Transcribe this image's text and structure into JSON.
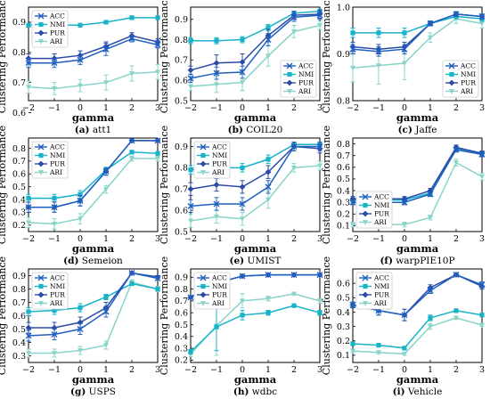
{
  "colors": {
    "ACC": "#1f5fbf",
    "NMI": "#17b3c9",
    "PUR": "#2a4aa8",
    "ARI": "#88d4c8"
  },
  "common": {
    "xlabel": "gamma",
    "ylabel": "Clustering Performance"
  },
  "chart_data": [
    {
      "type": "line",
      "panel_letter": "(a)",
      "panel_name": "att1",
      "x": [
        -2,
        -1,
        0,
        1,
        2,
        3
      ],
      "xlim": [
        -2,
        3
      ],
      "yticks": [
        "0.6",
        "0.7",
        "0.8",
        "0.9"
      ],
      "ylim": [
        0.64,
        0.95
      ],
      "legend": "top-left",
      "legend_entries": [
        "ACC",
        "NMI",
        "PUR",
        "ARI"
      ],
      "series": [
        {
          "name": "ACC",
          "values": [
            0.765,
            0.765,
            0.775,
            0.81,
            0.845,
            0.825
          ],
          "err": [
            0.015,
            0.015,
            0.015,
            0.02,
            0.01,
            0.01
          ]
        },
        {
          "name": "NMI",
          "values": [
            0.89,
            0.89,
            0.89,
            0.9,
            0.915,
            0.915
          ],
          "err": [
            0.005,
            0.005,
            0.005,
            0.005,
            0.005,
            0.005
          ]
        },
        {
          "name": "PUR",
          "values": [
            0.78,
            0.78,
            0.79,
            0.82,
            0.855,
            0.835
          ],
          "err": [
            0.015,
            0.015,
            0.015,
            0.015,
            0.01,
            0.01
          ]
        },
        {
          "name": "ARI",
          "values": [
            0.685,
            0.68,
            0.69,
            0.7,
            0.73,
            0.735
          ],
          "err": [
            0.02,
            0.02,
            0.02,
            0.025,
            0.025,
            0.025
          ]
        }
      ]
    },
    {
      "type": "line",
      "panel_letter": "(b)",
      "panel_name": "COIL20",
      "x": [
        -2,
        -1,
        0,
        1,
        2,
        3
      ],
      "xlim": [
        -2,
        3
      ],
      "yticks": [
        "0.5",
        "0.6",
        "0.7",
        "0.8",
        "0.9"
      ],
      "ylim": [
        0.5,
        0.96
      ],
      "legend": "bottom-right",
      "legend_entries": [
        "ACC",
        "NMI",
        "PUR",
        "ARI"
      ],
      "series": [
        {
          "name": "ACC",
          "values": [
            0.61,
            0.635,
            0.64,
            0.8,
            0.91,
            0.92
          ],
          "err": [
            0.02,
            0.03,
            0.03,
            0.03,
            0.02,
            0.02
          ]
        },
        {
          "name": "NMI",
          "values": [
            0.795,
            0.795,
            0.8,
            0.86,
            0.93,
            0.94
          ],
          "err": [
            0.015,
            0.015,
            0.015,
            0.015,
            0.01,
            0.01
          ]
        },
        {
          "name": "PUR",
          "values": [
            0.65,
            0.685,
            0.69,
            0.82,
            0.92,
            0.925
          ],
          "err": [
            0.02,
            0.04,
            0.04,
            0.03,
            0.02,
            0.02
          ]
        },
        {
          "name": "ARI",
          "values": [
            0.57,
            0.58,
            0.59,
            0.72,
            0.84,
            0.87
          ],
          "err": [
            0.02,
            0.04,
            0.04,
            0.05,
            0.03,
            0.02
          ]
        }
      ]
    },
    {
      "type": "line",
      "panel_letter": "(c)",
      "panel_name": "Jaffe",
      "x": [
        -2,
        -1,
        0,
        1,
        2,
        3
      ],
      "xlim": [
        -2,
        3
      ],
      "yticks": [
        "0.8",
        "0.9",
        "1.0"
      ],
      "ylim": [
        0.8,
        1.0
      ],
      "legend": "bottom-right",
      "legend_entries": [
        "ACC",
        "NMI",
        "PUR",
        "ARI"
      ],
      "series": [
        {
          "name": "ACC",
          "values": [
            0.91,
            0.905,
            0.91,
            0.965,
            0.985,
            0.98
          ],
          "err": [
            0.01,
            0.01,
            0.01,
            0.005,
            0.005,
            0.005
          ]
        },
        {
          "name": "NMI",
          "values": [
            0.945,
            0.945,
            0.945,
            0.965,
            0.98,
            0.975
          ],
          "err": [
            0.01,
            0.01,
            0.01,
            0.005,
            0.005,
            0.005
          ]
        },
        {
          "name": "PUR",
          "values": [
            0.915,
            0.91,
            0.915,
            0.965,
            0.985,
            0.98
          ],
          "err": [
            0.01,
            0.01,
            0.01,
            0.005,
            0.005,
            0.005
          ]
        },
        {
          "name": "ARI",
          "values": [
            0.87,
            0.875,
            0.88,
            0.935,
            0.975,
            0.965
          ],
          "err": [
            0.03,
            0.04,
            0.035,
            0.01,
            0.01,
            0.01
          ]
        }
      ]
    },
    {
      "type": "line",
      "panel_letter": "(d)",
      "panel_name": "Semeion",
      "x": [
        -2,
        -1,
        0,
        1,
        2,
        3
      ],
      "xlim": [
        -2,
        3
      ],
      "yticks": [
        "0.2",
        "0.3",
        "0.4",
        "0.5",
        "0.6",
        "0.7",
        "0.8"
      ],
      "ylim": [
        0.15,
        0.88
      ],
      "legend": "top-left",
      "legend_entries": [
        "ACC",
        "NMI",
        "PUR",
        "ARI"
      ],
      "series": [
        {
          "name": "ACC",
          "values": [
            0.34,
            0.34,
            0.39,
            0.62,
            0.86,
            0.86
          ],
          "err": [
            0.04,
            0.04,
            0.04,
            0.03,
            0.01,
            0.01
          ]
        },
        {
          "name": "NMI",
          "values": [
            0.41,
            0.41,
            0.44,
            0.63,
            0.77,
            0.76
          ],
          "err": [
            0.03,
            0.03,
            0.03,
            0.02,
            0.01,
            0.01
          ]
        },
        {
          "name": "PUR",
          "values": [
            0.34,
            0.34,
            0.39,
            0.62,
            0.86,
            0.86
          ],
          "err": [
            0.04,
            0.04,
            0.04,
            0.03,
            0.01,
            0.01
          ]
        },
        {
          "name": "ARI",
          "values": [
            0.22,
            0.21,
            0.25,
            0.48,
            0.72,
            0.72
          ],
          "err": [
            0.04,
            0.04,
            0.04,
            0.03,
            0.02,
            0.02
          ]
        }
      ]
    },
    {
      "type": "line",
      "panel_letter": "(e)",
      "panel_name": "UMIST",
      "x": [
        -2,
        -1,
        0,
        1,
        2,
        3
      ],
      "xlim": [
        -2,
        3
      ],
      "yticks": [
        "0.5",
        "0.6",
        "0.7",
        "0.8",
        "0.9"
      ],
      "ylim": [
        0.5,
        0.94
      ],
      "legend": "top-left",
      "legend_entries": [
        "ACC",
        "NMI",
        "PUR",
        "ARI"
      ],
      "series": [
        {
          "name": "ACC",
          "values": [
            0.62,
            0.63,
            0.63,
            0.71,
            0.9,
            0.9
          ],
          "err": [
            0.03,
            0.03,
            0.03,
            0.03,
            0.02,
            0.02
          ]
        },
        {
          "name": "NMI",
          "values": [
            0.79,
            0.8,
            0.8,
            0.84,
            0.91,
            0.91
          ],
          "err": [
            0.02,
            0.02,
            0.02,
            0.02,
            0.01,
            0.01
          ]
        },
        {
          "name": "PUR",
          "values": [
            0.7,
            0.72,
            0.71,
            0.78,
            0.9,
            0.89
          ],
          "err": [
            0.03,
            0.03,
            0.03,
            0.03,
            0.02,
            0.02
          ]
        },
        {
          "name": "ARI",
          "values": [
            0.55,
            0.57,
            0.56,
            0.65,
            0.8,
            0.81
          ],
          "err": [
            0.03,
            0.03,
            0.03,
            0.04,
            0.02,
            0.02
          ]
        }
      ]
    },
    {
      "type": "line",
      "panel_letter": "(f)",
      "panel_name": "warpPIE10P",
      "x": [
        -2,
        -1,
        0,
        1,
        2,
        3
      ],
      "xlim": [
        -2,
        3
      ],
      "yticks": [
        "0.1",
        "0.2",
        "0.3",
        "0.4",
        "0.5",
        "0.6",
        "0.7",
        "0.8"
      ],
      "ylim": [
        0.05,
        0.85
      ],
      "legend": "bottom-left",
      "legend_entries": [
        "ACC",
        "NMI",
        "PUR",
        "ARI"
      ],
      "series": [
        {
          "name": "ACC",
          "values": [
            0.3,
            0.3,
            0.3,
            0.37,
            0.75,
            0.71
          ],
          "err": [
            0.02,
            0.02,
            0.02,
            0.02,
            0.02,
            0.02
          ]
        },
        {
          "name": "NMI",
          "values": [
            0.32,
            0.32,
            0.32,
            0.38,
            0.76,
            0.72
          ],
          "err": [
            0.02,
            0.02,
            0.02,
            0.02,
            0.02,
            0.02
          ]
        },
        {
          "name": "PUR",
          "values": [
            0.33,
            0.33,
            0.33,
            0.4,
            0.77,
            0.72
          ],
          "err": [
            0.02,
            0.02,
            0.02,
            0.02,
            0.02,
            0.02
          ]
        },
        {
          "name": "ARI",
          "values": [
            0.11,
            0.11,
            0.11,
            0.17,
            0.64,
            0.52
          ],
          "err": [
            0.02,
            0.02,
            0.02,
            0.02,
            0.03,
            0.03
          ]
        }
      ]
    },
    {
      "type": "line",
      "panel_letter": "(g)",
      "panel_name": "USPS",
      "x": [
        -2,
        -1,
        0,
        1,
        2,
        3
      ],
      "xlim": [
        -2,
        3
      ],
      "yticks": [
        "0.3",
        "0.4",
        "0.5",
        "0.6",
        "0.7",
        "0.8",
        "0.9"
      ],
      "ylim": [
        0.25,
        0.95
      ],
      "legend": "top-left",
      "legend_entries": [
        "ACC",
        "NMI",
        "PUR",
        "ARI"
      ],
      "series": [
        {
          "name": "ACC",
          "values": [
            0.45,
            0.46,
            0.5,
            0.63,
            0.92,
            0.88
          ],
          "err": [
            0.04,
            0.04,
            0.04,
            0.04,
            0.01,
            0.01
          ]
        },
        {
          "name": "NMI",
          "values": [
            0.63,
            0.64,
            0.66,
            0.74,
            0.84,
            0.8
          ],
          "err": [
            0.03,
            0.03,
            0.03,
            0.02,
            0.01,
            0.01
          ]
        },
        {
          "name": "PUR",
          "values": [
            0.51,
            0.51,
            0.55,
            0.66,
            0.92,
            0.89
          ],
          "err": [
            0.04,
            0.04,
            0.04,
            0.04,
            0.01,
            0.01
          ]
        },
        {
          "name": "ARI",
          "values": [
            0.32,
            0.32,
            0.34,
            0.38,
            0.85,
            0.8
          ],
          "err": [
            0.03,
            0.03,
            0.03,
            0.03,
            0.02,
            0.02
          ]
        }
      ]
    },
    {
      "type": "line",
      "panel_letter": "(h)",
      "panel_name": "wdbc",
      "x": [
        -2,
        -1,
        0,
        1,
        2,
        3
      ],
      "xlim": [
        -2,
        3
      ],
      "yticks": [
        "0.2",
        "0.3",
        "0.4",
        "0.5",
        "0.6",
        "0.7",
        "0.8",
        "0.9"
      ],
      "ylim": [
        0.18,
        0.97
      ],
      "legend": "top-left",
      "legend_entries": [
        "ACC",
        "NMI",
        "PUR",
        "ARI"
      ],
      "series": [
        {
          "name": "ACC",
          "values": [
            0.73,
            0.85,
            0.91,
            0.92,
            0.92,
            0.92
          ],
          "err": [
            0.01,
            0.06,
            0.01,
            0.005,
            0.005,
            0.005
          ]
        },
        {
          "name": "NMI",
          "values": [
            0.27,
            0.48,
            0.58,
            0.6,
            0.66,
            0.6
          ],
          "err": [
            0.02,
            0.2,
            0.04,
            0.02,
            0.01,
            0.02
          ]
        },
        {
          "name": "PUR",
          "values": [
            0.73,
            0.85,
            0.91,
            0.92,
            0.92,
            0.92
          ],
          "err": [
            0.01,
            0.06,
            0.01,
            0.005,
            0.005,
            0.005
          ]
        },
        {
          "name": "ARI",
          "values": [
            0.25,
            0.49,
            0.7,
            0.72,
            0.76,
            0.7
          ],
          "err": [
            0.02,
            0.25,
            0.06,
            0.02,
            0.01,
            0.02
          ]
        }
      ]
    },
    {
      "type": "line",
      "panel_letter": "(i)",
      "panel_name": "Vehicle",
      "x": [
        -2,
        -1,
        0,
        1,
        2,
        3
      ],
      "xlim": [
        -2,
        3
      ],
      "yticks": [
        "0.1",
        "0.2",
        "0.3",
        "0.4",
        "0.5",
        "0.6"
      ],
      "ylim": [
        0.05,
        0.7
      ],
      "legend": "top-left",
      "legend_entries": [
        "ACC",
        "NMI",
        "PUR",
        "ARI"
      ],
      "series": [
        {
          "name": "ACC",
          "values": [
            0.45,
            0.41,
            0.38,
            0.55,
            0.66,
            0.59
          ],
          "err": [
            0.02,
            0.03,
            0.04,
            0.02,
            0.01,
            0.02
          ]
        },
        {
          "name": "NMI",
          "values": [
            0.18,
            0.17,
            0.15,
            0.36,
            0.41,
            0.38
          ],
          "err": [
            0.01,
            0.01,
            0.01,
            0.02,
            0.01,
            0.01
          ]
        },
        {
          "name": "PUR",
          "values": [
            0.45,
            0.41,
            0.38,
            0.57,
            0.66,
            0.58
          ],
          "err": [
            0.02,
            0.03,
            0.04,
            0.02,
            0.01,
            0.02
          ]
        },
        {
          "name": "ARI",
          "values": [
            0.13,
            0.12,
            0.11,
            0.3,
            0.36,
            0.31
          ],
          "err": [
            0.01,
            0.01,
            0.01,
            0.02,
            0.01,
            0.01
          ]
        }
      ]
    }
  ]
}
